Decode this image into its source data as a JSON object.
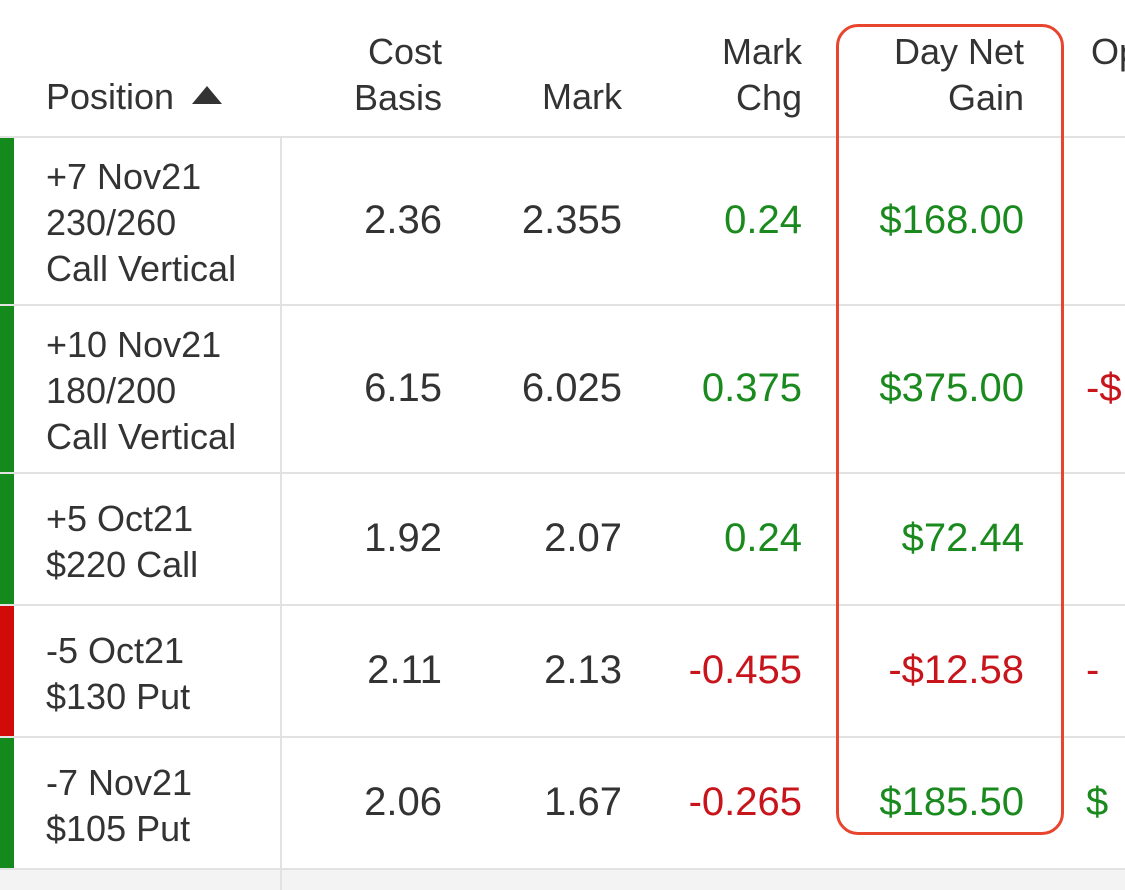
{
  "header": {
    "position_label": "Position",
    "cost_basis_line1": "Cost",
    "cost_basis_line2": "Basis",
    "mark_label": "Mark",
    "mark_chg_line1": "Mark",
    "mark_chg_line2": "Chg",
    "day_net_gain_line1": "Day Net",
    "day_net_gain_line2": "Gain",
    "partial_next_col": "Op"
  },
  "rows": [
    {
      "position": "+7 Nov21\n230/260\nCall Vertical",
      "cost_basis": "2.36",
      "mark": "2.355",
      "mark_chg": "0.24",
      "day_net_gain": "$168.00",
      "partial": "",
      "trend": "up",
      "chg_sign": "positive",
      "gain_sign": "positive",
      "partial_sign": ""
    },
    {
      "position": "+10 Nov21\n180/200\nCall Vertical",
      "cost_basis": "6.15",
      "mark": "6.025",
      "mark_chg": "0.375",
      "day_net_gain": "$375.00",
      "partial": "-$",
      "trend": "up",
      "chg_sign": "positive",
      "gain_sign": "positive",
      "partial_sign": "negative"
    },
    {
      "position": "+5 Oct21\n$220 Call",
      "cost_basis": "1.92",
      "mark": "2.07",
      "mark_chg": "0.24",
      "day_net_gain": "$72.44",
      "partial": "",
      "trend": "up",
      "chg_sign": "positive",
      "gain_sign": "positive",
      "partial_sign": ""
    },
    {
      "position": "-5 Oct21\n$130 Put",
      "cost_basis": "2.11",
      "mark": "2.13",
      "mark_chg": "-0.455",
      "day_net_gain": "-$12.58",
      "partial": "-",
      "trend": "down",
      "chg_sign": "negative",
      "gain_sign": "negative",
      "partial_sign": "negative"
    },
    {
      "position": "-7 Nov21\n$105 Put",
      "cost_basis": "2.06",
      "mark": "1.67",
      "mark_chg": "-0.265",
      "day_net_gain": "$185.50",
      "partial": "$",
      "trend": "up",
      "chg_sign": "negative",
      "gain_sign": "positive",
      "partial_sign": "positive"
    }
  ],
  "colors": {
    "gain": "#1a8a1f",
    "loss": "#c8141b",
    "highlight": "#e8452f",
    "bar_up": "#138a1b",
    "bar_down": "#d10a0a"
  }
}
